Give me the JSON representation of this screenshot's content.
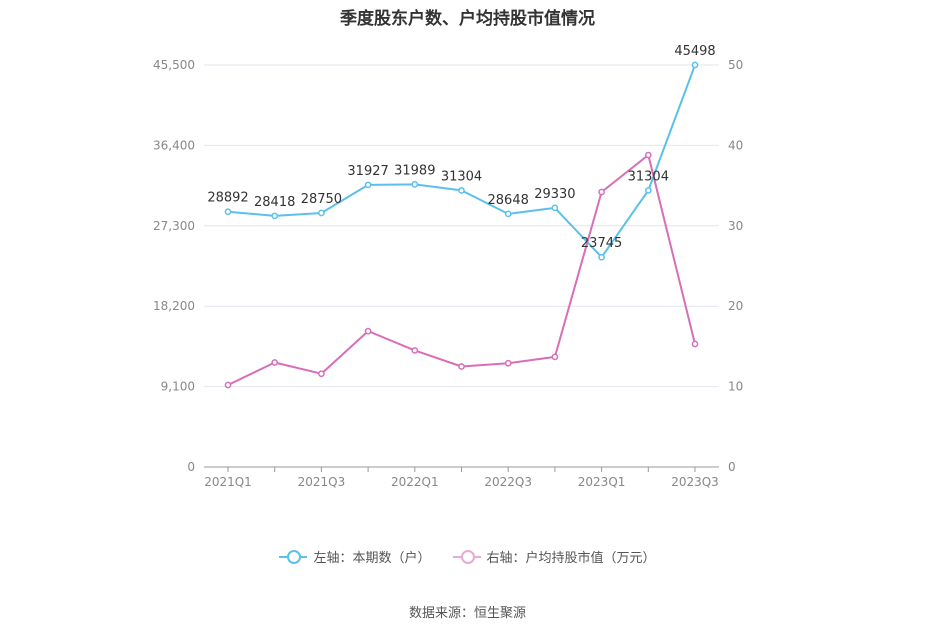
{
  "chart_data": {
    "type": "line",
    "title": "季度股东户数、户均持股市值情况",
    "categories": [
      "2021Q1",
      "",
      "2021Q3",
      "",
      "2022Q1",
      "",
      "2022Q3",
      "",
      "2023Q1",
      "",
      "2023Q3"
    ],
    "left_axis": {
      "ticks": [
        "0",
        "9,100",
        "18,200",
        "27,300",
        "36,400",
        "45,500"
      ],
      "ylim": [
        0,
        45500
      ]
    },
    "right_axis": {
      "ticks": [
        "0",
        "10",
        "20",
        "30",
        "40",
        "50"
      ],
      "ylim": [
        0,
        50
      ]
    },
    "series": [
      {
        "name": "左轴：本期数（户）",
        "axis": "left",
        "color": "#5bc0eb",
        "values": [
          28892,
          28418,
          28750,
          31927,
          31989,
          31304,
          28648,
          29330,
          23745,
          31304,
          45498
        ],
        "labels": [
          "28892",
          "28418",
          "28750",
          "31927",
          "31989",
          "31304",
          "28648",
          "29330",
          "23745",
          "31304",
          "45498"
        ]
      },
      {
        "name": "右轴：户均持股市值（万元）",
        "axis": "right",
        "color": "#d86eb8",
        "values": [
          10.2,
          13.0,
          11.6,
          16.9,
          14.5,
          12.5,
          12.9,
          13.7,
          34.2,
          38.8,
          15.3
        ]
      }
    ],
    "grid": true,
    "legend_position": "bottom"
  },
  "legend": {
    "left_label": "左轴：本期数（户）",
    "right_label": "右轴：户均持股市值（万元）"
  },
  "source": "数据来源：恒生聚源"
}
